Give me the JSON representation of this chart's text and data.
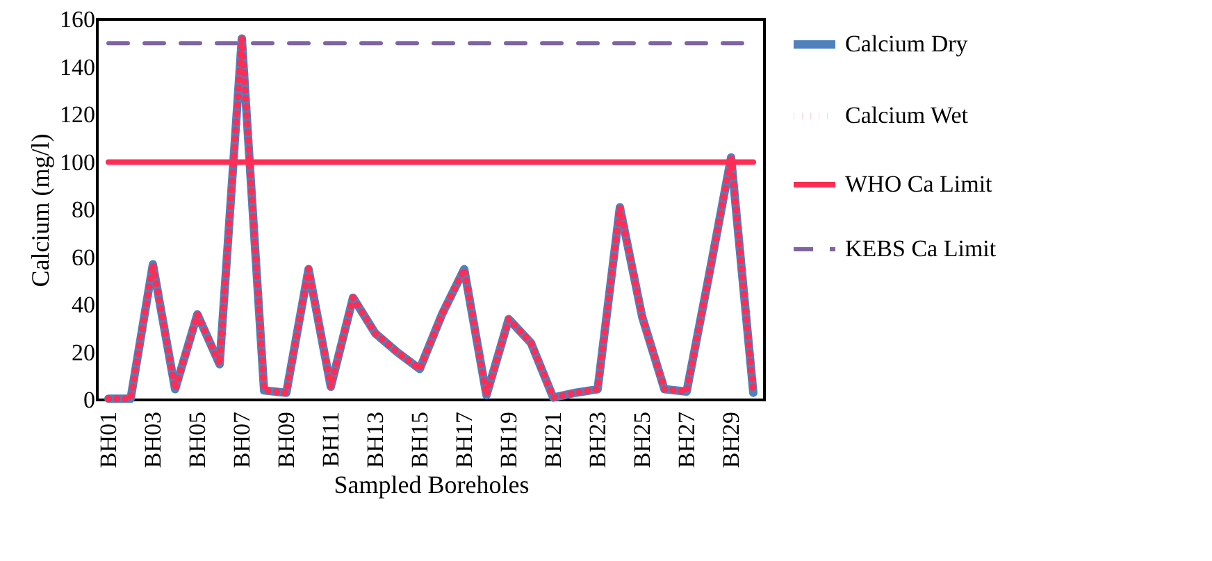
{
  "chart_data": {
    "type": "line",
    "xlabel": "Sampled Boreholes",
    "ylabel": "Calcium (mg/l)",
    "categories": [
      "BH01",
      null,
      "BH03",
      null,
      "BH05",
      null,
      "BH07",
      null,
      "BH09",
      null,
      "BH11",
      null,
      "BH13",
      null,
      "BH15",
      null,
      "BH17",
      null,
      "BH19",
      null,
      "BH21",
      null,
      "BH23",
      null,
      "BH25",
      null,
      "BH27",
      null,
      "BH29",
      null
    ],
    "series": [
      {
        "name": "Calcium Dry",
        "color": "#4f81bd",
        "line_style": "solid",
        "values": [
          0.5,
          0.5,
          57,
          4.5,
          36,
          15,
          152,
          4,
          3,
          55,
          5.5,
          43,
          28,
          20,
          13,
          36,
          55,
          2,
          34,
          24,
          1,
          3,
          4.5,
          81,
          35,
          4.5,
          3.5,
          52,
          102,
          3
        ]
      },
      {
        "name": "Calcium Wet",
        "color": "#ff2d55",
        "line_style": "dotted",
        "values": [
          0.5,
          0.5,
          57,
          4.5,
          36,
          15,
          152,
          4,
          3,
          55,
          5.5,
          43,
          28,
          20,
          13,
          36,
          55,
          2,
          34,
          24,
          1,
          3,
          4.5,
          81,
          35,
          4.5,
          3.5,
          52,
          102,
          3
        ]
      }
    ],
    "ref_lines": [
      {
        "axis": "y",
        "value": 100,
        "label": "WHO Ca Limit",
        "color": "#ff2d55",
        "line_style": "solid"
      },
      {
        "axis": "y",
        "value": 150,
        "label": "KEBS Ca Limit",
        "color": "#8064a2",
        "line_style": "dashed"
      }
    ],
    "ylim": [
      0,
      160
    ],
    "yticks": [
      0,
      20,
      40,
      60,
      80,
      100,
      120,
      140,
      160
    ],
    "legend": "right"
  }
}
